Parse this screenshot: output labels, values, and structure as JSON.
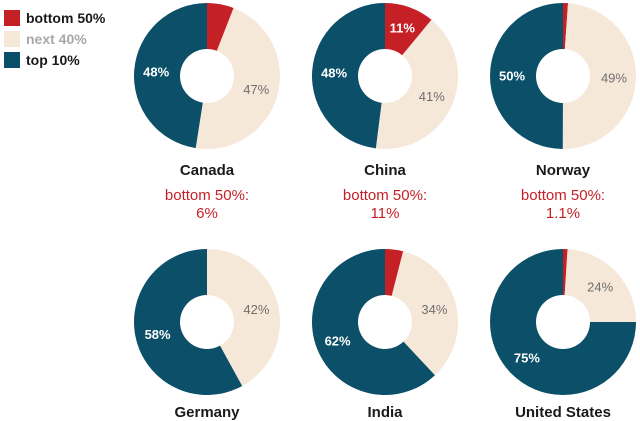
{
  "legend": [
    {
      "label": "bottom 50%",
      "color": "#c62027",
      "text_color": "#1a1a1a"
    },
    {
      "label": "next 40%",
      "color": "#f6e8d9",
      "text_color": "#a8a8a8"
    },
    {
      "label": "top 10%",
      "color": "#0b4f68",
      "text_color": "#1a1a1a"
    }
  ],
  "chart_data": {
    "type": "pie",
    "variant": "donut",
    "series": [
      "bottom 50%",
      "next 40%",
      "top 10%"
    ],
    "colors": {
      "bottom 50%": "#c62027",
      "next 40%": "#f6e8d9",
      "top 10%": "#0b4f68"
    },
    "charts": [
      {
        "country": "Canada",
        "values": {
          "bottom 50%": 6,
          "next 40%": 47,
          "top 10%": 48
        },
        "labels": {
          "bottom 50%": "",
          "next 40%": "47%",
          "top 10%": "48%"
        },
        "note": {
          "line1": "bottom 50%:",
          "line2": "6%"
        }
      },
      {
        "country": "China",
        "values": {
          "bottom 50%": 11,
          "next 40%": 41,
          "top 10%": 48
        },
        "labels": {
          "bottom 50%": "11%",
          "next 40%": "41%",
          "top 10%": "48%"
        },
        "note": {
          "line1": "bottom 50%:",
          "line2": "11%"
        }
      },
      {
        "country": "Norway",
        "values": {
          "bottom 50%": 1.1,
          "next 40%": 49,
          "top 10%": 50
        },
        "labels": {
          "bottom 50%": "",
          "next 40%": "49%",
          "top 10%": "50%"
        },
        "note": {
          "line1": "bottom 50%:",
          "line2": "1.1%"
        }
      },
      {
        "country": "Germany",
        "values": {
          "bottom 50%": 0,
          "next 40%": 42,
          "top 10%": 58
        },
        "labels": {
          "bottom 50%": "",
          "next 40%": "42%",
          "top 10%": "58%"
        },
        "note": null
      },
      {
        "country": "India",
        "values": {
          "bottom 50%": 4,
          "next 40%": 34,
          "top 10%": 62
        },
        "labels": {
          "bottom 50%": "",
          "next 40%": "34%",
          "top 10%": "62%"
        },
        "note": null
      },
      {
        "country": "United States",
        "values": {
          "bottom 50%": 1,
          "next 40%": 24,
          "top 10%": 75
        },
        "labels": {
          "bottom 50%": "",
          "next 40%": "24%",
          "top 10%": "75%"
        },
        "note": null
      }
    ]
  }
}
